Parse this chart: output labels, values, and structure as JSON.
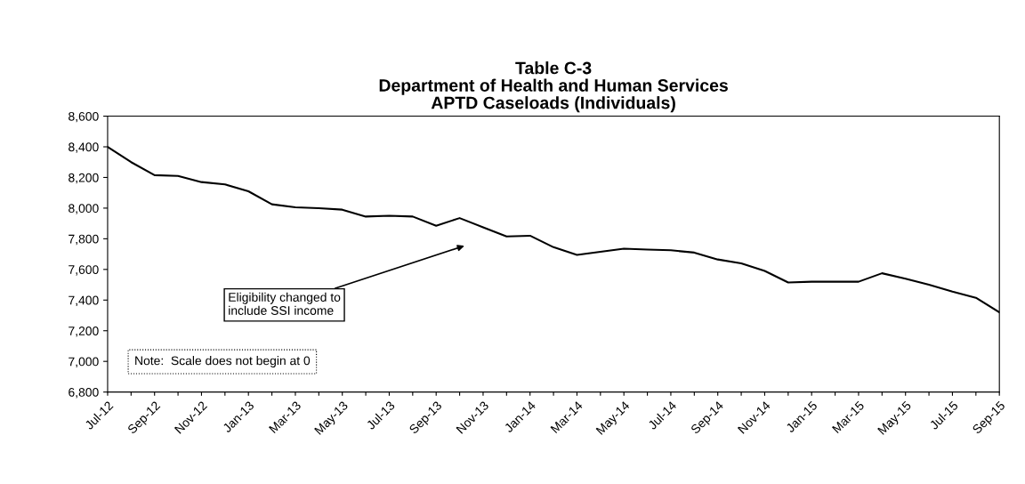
{
  "chart_data": {
    "type": "line",
    "title": "Table C-3\nDepartment of Health and Human Services\nAPTD Caseloads (Individuals)",
    "categories": [
      "Jul-12",
      null,
      "Sep-12",
      null,
      "Nov-12",
      null,
      "Jan-13",
      null,
      "Mar-13",
      null,
      "May-13",
      null,
      "Jul-13",
      null,
      "Sep-13",
      null,
      "Nov-13",
      null,
      "Jan-14",
      null,
      "Mar-14",
      null,
      "May-14",
      null,
      "Jul-14",
      null,
      "Sep-14",
      null,
      "Nov-14",
      null,
      "Jan-15",
      null,
      "Mar-15",
      null,
      "May-15",
      null,
      "Jul-15",
      null,
      "Sep-15"
    ],
    "series": [
      {
        "color": "#000000",
        "values": [
          8400,
          8300,
          8215,
          8210,
          8170,
          8155,
          8110,
          8025,
          8005,
          8000,
          7990,
          7945,
          7950,
          7945,
          7885,
          7935,
          7875,
          7815,
          7820,
          7745,
          7695,
          7715,
          7735,
          7730,
          7725,
          7710,
          7665,
          7640,
          7590,
          7515,
          7520,
          7520,
          7520,
          7575,
          7540,
          7500,
          7455,
          7415,
          7320
        ]
      }
    ],
    "ylim": [
      6800,
      8600
    ],
    "yticks": [
      {
        "value": 6800,
        "label": "6,800"
      },
      {
        "value": 7000,
        "label": "7,000"
      },
      {
        "value": 7200,
        "label": "7,200"
      },
      {
        "value": 7400,
        "label": "7,400"
      },
      {
        "value": 7600,
        "label": "7,600"
      },
      {
        "value": 7800,
        "label": "7,800"
      },
      {
        "value": 8000,
        "label": "8,000"
      },
      {
        "value": 8200,
        "label": "8,200"
      },
      {
        "value": 8400,
        "label": "8,400"
      },
      {
        "value": 8600,
        "label": "8,600"
      }
    ],
    "annotations": [
      "Eligibility changed to\ninclude SSI income",
      "Note:  Scale does not begin at 0"
    ],
    "grid": false,
    "marker": "none",
    "line_style": "solid"
  }
}
